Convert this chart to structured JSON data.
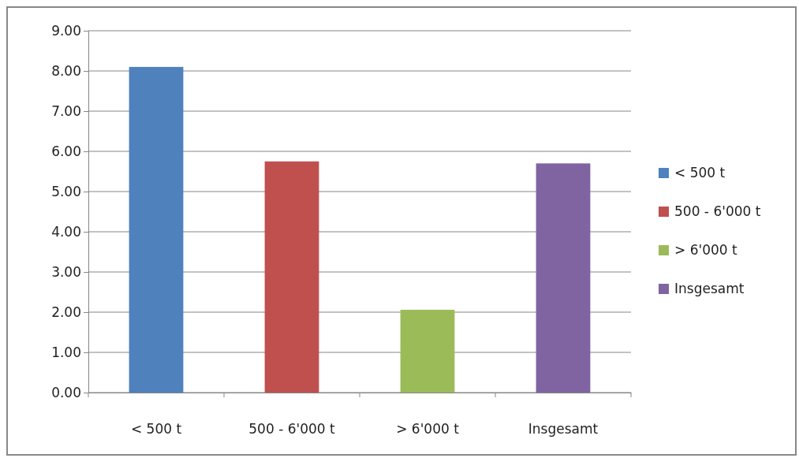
{
  "chart_data": {
    "type": "bar",
    "categories": [
      "< 500 t",
      "500 - 6'000 t",
      "> 6'000 t",
      "Insgesamt"
    ],
    "series": [
      {
        "name": "< 500 t",
        "color": "#4f81bd",
        "values": [
          8.1,
          null,
          null,
          null
        ]
      },
      {
        "name": "500 - 6'000 t",
        "color": "#c0504d",
        "values": [
          null,
          5.75,
          null,
          null
        ]
      },
      {
        "name": "> 6'000 t",
        "color": "#9bbb59",
        "values": [
          null,
          null,
          2.06,
          null
        ]
      },
      {
        "name": "Insgesamt",
        "color": "#8064a2",
        "values": [
          null,
          null,
          null,
          5.7
        ]
      }
    ],
    "ylim": [
      0,
      9
    ],
    "yticks": [
      {
        "value": 0,
        "label": "0.00"
      },
      {
        "value": 1,
        "label": "1.00"
      },
      {
        "value": 2,
        "label": "2.00"
      },
      {
        "value": 3,
        "label": "3.00"
      },
      {
        "value": 4,
        "label": "4.00"
      },
      {
        "value": 5,
        "label": "5.00"
      },
      {
        "value": 6,
        "label": "6.00"
      },
      {
        "value": 7,
        "label": "7.00"
      },
      {
        "value": 8,
        "label": "8.00"
      },
      {
        "value": 9,
        "label": "9.00"
      }
    ],
    "grid": "y",
    "legend": "right"
  }
}
